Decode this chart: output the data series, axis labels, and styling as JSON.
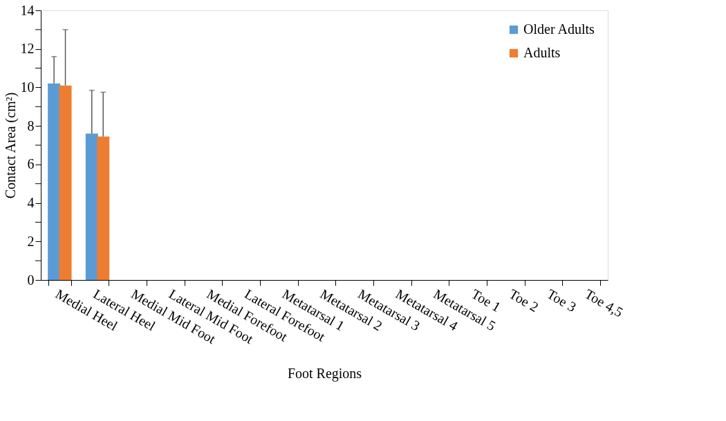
{
  "chart_data": {
    "type": "bar",
    "xlabel": "Foot Regions",
    "ylabel": "Contact Area (cm²)",
    "categories": [
      "Medial Heel",
      "Lateral Heel",
      "Medial Mid Foot",
      "Lateral Mid Foot",
      "Medial Forefoot",
      "Lateral Forefoot",
      "Metatarsal 1",
      "Metatarsal 2",
      "Metatarsal 3",
      "Metatarsal 4",
      "Metatarsal 5",
      "Toe 1",
      "Toe 2",
      "Toe 3",
      "Toe 4,5"
    ],
    "series": [
      {
        "name": "Older Adults",
        "color": "#5b9bd5",
        "values": [
          10.2,
          7.6,
          null,
          null,
          null,
          null,
          null,
          null,
          null,
          null,
          null,
          null,
          null,
          null,
          null
        ],
        "errors": [
          [
            10.2,
            11.6
          ],
          [
            7.6,
            9.85
          ],
          null,
          null,
          null,
          null,
          null,
          null,
          null,
          null,
          null,
          null,
          null,
          null,
          null
        ]
      },
      {
        "name": "Adults",
        "color": "#ed7d31",
        "values": [
          10.1,
          7.45,
          null,
          null,
          null,
          null,
          null,
          null,
          null,
          null,
          null,
          null,
          null,
          null,
          null
        ],
        "errors": [
          [
            10.1,
            13.0
          ],
          [
            7.45,
            9.75
          ],
          null,
          null,
          null,
          null,
          null,
          null,
          null,
          null,
          null,
          null,
          null,
          null,
          null
        ]
      }
    ],
    "ylim": [
      0,
      14
    ],
    "yticks": [
      0,
      {
        "value": 1,
        "label": null
      },
      2,
      {
        "value": 3,
        "label": null
      },
      4,
      {
        "value": 5,
        "label": null
      },
      6,
      {
        "value": 7,
        "label": null
      },
      8,
      {
        "value": 9,
        "label": null
      },
      10,
      {
        "value": 11,
        "label": null
      },
      12,
      {
        "value": 13,
        "label": null
      },
      14
    ],
    "grid": false,
    "legend": "top right"
  }
}
